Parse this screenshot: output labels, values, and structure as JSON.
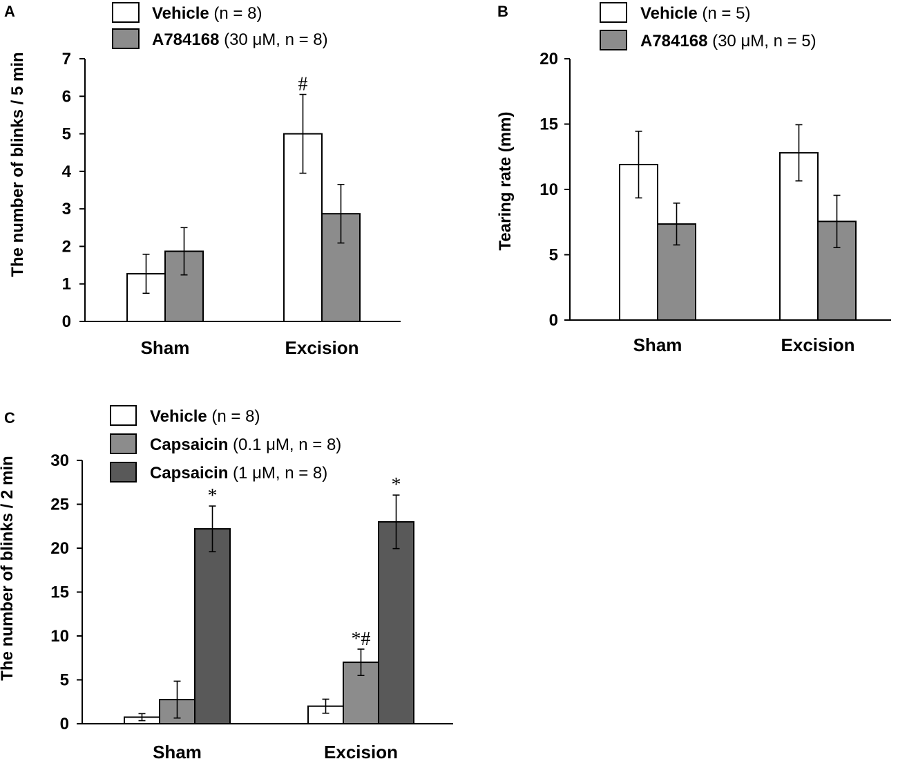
{
  "chart_data": [
    {
      "panel": "A",
      "type": "bar",
      "ylabel": "The number of  blinks / 5 min",
      "ylim": [
        0,
        7
      ],
      "yticks": [
        "0",
        "1",
        "2",
        "3",
        "4",
        "5",
        "6",
        "7"
      ],
      "categories": [
        "Sham",
        "Excision"
      ],
      "series": [
        {
          "name": "Vehicle",
          "detail": " (n = 8)",
          "color": "#ffffff",
          "values": [
            1.27,
            5.0
          ],
          "errors": [
            0.52,
            1.05
          ]
        },
        {
          "name": "A784168",
          "detail": " (30 μM, n = 8)",
          "color": "#8c8c8c",
          "values": [
            1.87,
            2.87
          ],
          "errors": [
            0.63,
            0.78
          ]
        }
      ],
      "annotations": [
        {
          "series": 0,
          "category": 1,
          "text": "#"
        }
      ]
    },
    {
      "panel": "B",
      "type": "bar",
      "ylabel": "Tearing rate (mm)",
      "ylim": [
        0,
        20
      ],
      "yticks": [
        "0",
        "5",
        "10",
        "15",
        "20"
      ],
      "categories": [
        "Sham",
        "Excision"
      ],
      "series": [
        {
          "name": "Vehicle",
          "detail": " (n = 5)",
          "color": "#ffffff",
          "values": [
            11.9,
            12.8
          ],
          "errors": [
            2.55,
            2.15
          ]
        },
        {
          "name": "A784168",
          "detail": " (30 μM, n = 5)",
          "color": "#8c8c8c",
          "values": [
            7.35,
            7.55
          ],
          "errors": [
            1.6,
            2.0
          ]
        }
      ],
      "annotations": []
    },
    {
      "panel": "C",
      "type": "bar",
      "ylabel": "The number of blinks / 2 min",
      "ylim": [
        0,
        30
      ],
      "yticks": [
        "0",
        "5",
        "10",
        "15",
        "20",
        "25",
        "30"
      ],
      "categories": [
        "Sham",
        "Excision"
      ],
      "series": [
        {
          "name": "Vehicle",
          "detail": " (n = 8)",
          "color": "#ffffff",
          "values": [
            0.75,
            2.0
          ],
          "errors": [
            0.4,
            0.8
          ]
        },
        {
          "name": "Capsaicin",
          "detail": " (0.1 μM, n = 8)",
          "color": "#8c8c8c",
          "values": [
            2.75,
            7.0
          ],
          "errors": [
            2.1,
            1.5
          ]
        },
        {
          "name": "Capsaicin",
          "detail": " (1 μM, n = 8)",
          "color": "#595959",
          "values": [
            22.2,
            23.0
          ],
          "errors": [
            2.6,
            3.05
          ]
        }
      ],
      "annotations": [
        {
          "series": 2,
          "category": 0,
          "text": "*"
        },
        {
          "series": 1,
          "category": 1,
          "text": "*#"
        },
        {
          "series": 2,
          "category": 1,
          "text": "*"
        }
      ]
    }
  ]
}
